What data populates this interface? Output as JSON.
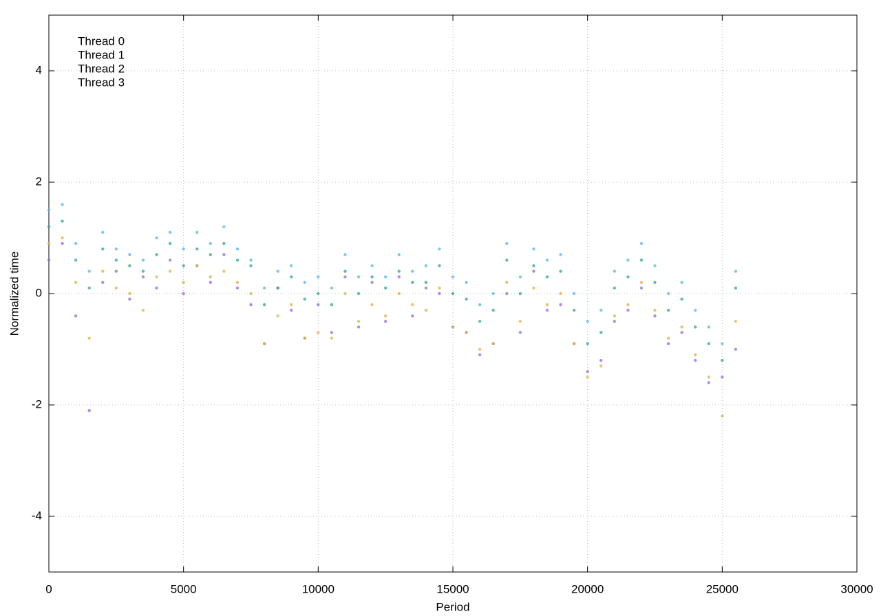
{
  "chart_data": {
    "type": "scatter",
    "x_label": "Period",
    "y_label": "Normalized time",
    "xlim": [
      0,
      30000
    ],
    "ylim": [
      -5,
      5
    ],
    "xticks": [
      0,
      5000,
      10000,
      15000,
      20000,
      25000,
      30000
    ],
    "yticks": [
      -4,
      -2,
      0,
      2,
      4
    ],
    "grid": true,
    "legend": "upper-left",
    "x": [
      0,
      500,
      1000,
      1500,
      2000,
      2500,
      3000,
      3500,
      4000,
      4500,
      5000,
      5500,
      6000,
      6500,
      7000,
      7500,
      8000,
      8500,
      9000,
      9500,
      10000,
      10500,
      11000,
      11500,
      12000,
      12500,
      13000,
      13500,
      14000,
      14500,
      15000,
      15500,
      16000,
      16500,
      17000,
      17500,
      18000,
      18500,
      19000,
      19500,
      20000,
      20500,
      21000,
      21500,
      22000,
      22500,
      23000,
      23500,
      24000,
      24500,
      25000,
      25500
    ],
    "series": [
      {
        "name": "Thread 0",
        "color": "#9467d4",
        "values": [
          0.6,
          0.9,
          -0.4,
          -2.1,
          0.2,
          0.4,
          -0.1,
          0.3,
          0.1,
          0.6,
          0.0,
          0.5,
          0.2,
          0.7,
          0.1,
          -0.2,
          -0.9,
          0.1,
          -0.3,
          -0.8,
          -0.2,
          -0.7,
          0.3,
          -0.6,
          0.2,
          -0.5,
          0.3,
          -0.4,
          0.1,
          0.0,
          -0.6,
          -0.7,
          -1.1,
          -0.9,
          0.0,
          -0.7,
          0.4,
          -0.3,
          -0.2,
          -0.9,
          -1.4,
          -1.2,
          -0.5,
          -0.3,
          0.1,
          -0.4,
          -0.9,
          -0.7,
          -1.2,
          -1.6,
          -1.5,
          -1.0
        ]
      },
      {
        "name": "Thread 1",
        "color": "#2aa87a",
        "values": [
          1.2,
          1.3,
          0.6,
          0.1,
          0.8,
          0.6,
          0.5,
          0.4,
          0.7,
          0.9,
          0.5,
          0.8,
          0.7,
          0.9,
          0.6,
          0.5,
          -0.2,
          0.1,
          0.3,
          -0.1,
          0.0,
          -0.2,
          0.4,
          0.0,
          0.3,
          0.1,
          0.4,
          0.2,
          0.2,
          0.5,
          0.0,
          -0.1,
          -0.5,
          -0.3,
          0.6,
          0.0,
          0.5,
          0.3,
          0.4,
          -0.3,
          -0.9,
          -0.7,
          0.1,
          0.3,
          0.6,
          0.2,
          -0.3,
          -0.1,
          -0.6,
          -0.9,
          -1.2,
          0.1
        ]
      },
      {
        "name": "Thread 2",
        "color": "#56b4e9",
        "values": [
          1.5,
          1.6,
          0.9,
          0.4,
          1.1,
          0.8,
          0.7,
          0.6,
          1.0,
          1.1,
          0.8,
          1.1,
          0.9,
          1.2,
          0.8,
          0.6,
          0.1,
          0.4,
          0.5,
          0.2,
          0.3,
          0.1,
          0.7,
          0.3,
          0.5,
          0.3,
          0.7,
          0.4,
          0.5,
          0.8,
          0.3,
          0.2,
          -0.2,
          0.0,
          0.9,
          0.3,
          0.8,
          0.6,
          0.7,
          0.0,
          -0.5,
          -0.3,
          0.4,
          0.6,
          0.9,
          0.5,
          0.0,
          0.2,
          -0.3,
          -0.6,
          -0.9,
          0.4
        ]
      },
      {
        "name": "Thread 3",
        "color": "#e0b040",
        "values": [
          0.9,
          1.0,
          0.2,
          -0.8,
          0.4,
          0.1,
          0.0,
          -0.3,
          0.3,
          0.4,
          0.2,
          0.5,
          0.3,
          0.4,
          0.2,
          0.0,
          -0.9,
          -0.4,
          -0.2,
          -0.8,
          -0.7,
          -0.8,
          0.0,
          -0.5,
          -0.2,
          -0.4,
          0.0,
          -0.2,
          -0.3,
          0.1,
          -0.6,
          -0.7,
          -1.0,
          -0.9,
          0.2,
          -0.5,
          0.1,
          -0.2,
          0.0,
          -0.9,
          -1.5,
          -1.3,
          -0.4,
          -0.2,
          0.2,
          -0.3,
          -0.8,
          -0.6,
          -1.1,
          -1.5,
          -2.2,
          -0.5
        ]
      }
    ]
  }
}
